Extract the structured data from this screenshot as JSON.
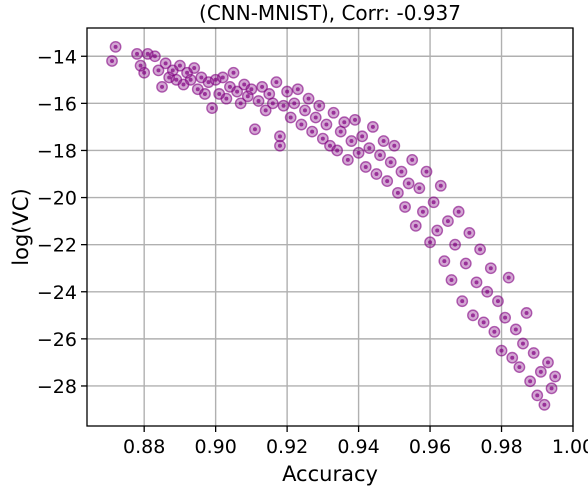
{
  "chart_data": {
    "type": "scatter",
    "title": "(CNN-MNIST), Corr: -0.937",
    "xlabel": "Accuracy",
    "ylabel": "log(VC)",
    "xlim": [
      0.864,
      1.0
    ],
    "ylim": [
      -29.7,
      -12.8
    ],
    "xticks": [
      0.88,
      0.9,
      0.92,
      0.94,
      0.96,
      0.98,
      1.0
    ],
    "xtick_labels": [
      "0.88",
      "0.90",
      "0.92",
      "0.94",
      "0.96",
      "0.98",
      "1.00"
    ],
    "yticks": [
      -14,
      -16,
      -18,
      -20,
      -22,
      -24,
      -26,
      -28
    ],
    "ytick_labels": [
      "−14",
      "−16",
      "−18",
      "−20",
      "−22",
      "−24",
      "−26",
      "−28"
    ],
    "grid": true,
    "marker_color": "#800080",
    "points": [
      [
        0.872,
        -13.6
      ],
      [
        0.871,
        -14.2
      ],
      [
        0.878,
        -13.9
      ],
      [
        0.879,
        -14.4
      ],
      [
        0.881,
        -13.9
      ],
      [
        0.883,
        -14.0
      ],
      [
        0.88,
        -14.7
      ],
      [
        0.884,
        -14.6
      ],
      [
        0.885,
        -15.3
      ],
      [
        0.886,
        -14.3
      ],
      [
        0.887,
        -14.9
      ],
      [
        0.888,
        -14.6
      ],
      [
        0.889,
        -15.0
      ],
      [
        0.89,
        -14.4
      ],
      [
        0.891,
        -15.2
      ],
      [
        0.892,
        -14.7
      ],
      [
        0.893,
        -15.0
      ],
      [
        0.894,
        -14.5
      ],
      [
        0.895,
        -15.4
      ],
      [
        0.896,
        -14.9
      ],
      [
        0.897,
        -15.6
      ],
      [
        0.898,
        -15.1
      ],
      [
        0.899,
        -16.2
      ],
      [
        0.9,
        -15.0
      ],
      [
        0.901,
        -15.6
      ],
      [
        0.902,
        -14.9
      ],
      [
        0.903,
        -15.8
      ],
      [
        0.904,
        -15.3
      ],
      [
        0.905,
        -14.7
      ],
      [
        0.906,
        -15.5
      ],
      [
        0.907,
        -16.0
      ],
      [
        0.908,
        -15.2
      ],
      [
        0.909,
        -15.7
      ],
      [
        0.91,
        -15.4
      ],
      [
        0.911,
        -17.1
      ],
      [
        0.912,
        -15.9
      ],
      [
        0.913,
        -15.3
      ],
      [
        0.914,
        -16.3
      ],
      [
        0.915,
        -15.6
      ],
      [
        0.916,
        -16.0
      ],
      [
        0.917,
        -15.1
      ],
      [
        0.918,
        -17.4
      ],
      [
        0.918,
        -17.8
      ],
      [
        0.919,
        -16.1
      ],
      [
        0.92,
        -15.5
      ],
      [
        0.921,
        -16.6
      ],
      [
        0.922,
        -16.0
      ],
      [
        0.923,
        -15.4
      ],
      [
        0.924,
        -16.9
      ],
      [
        0.925,
        -16.3
      ],
      [
        0.926,
        -15.8
      ],
      [
        0.927,
        -17.2
      ],
      [
        0.928,
        -16.6
      ],
      [
        0.929,
        -16.1
      ],
      [
        0.93,
        -17.5
      ],
      [
        0.931,
        -16.9
      ],
      [
        0.932,
        -17.8
      ],
      [
        0.933,
        -16.4
      ],
      [
        0.934,
        -18.0
      ],
      [
        0.935,
        -17.2
      ],
      [
        0.936,
        -16.8
      ],
      [
        0.937,
        -18.4
      ],
      [
        0.938,
        -17.6
      ],
      [
        0.939,
        -16.7
      ],
      [
        0.94,
        -18.1
      ],
      [
        0.941,
        -17.4
      ],
      [
        0.942,
        -18.7
      ],
      [
        0.943,
        -17.9
      ],
      [
        0.944,
        -17.0
      ],
      [
        0.945,
        -19.0
      ],
      [
        0.946,
        -18.2
      ],
      [
        0.947,
        -17.6
      ],
      [
        0.948,
        -19.3
      ],
      [
        0.949,
        -18.5
      ],
      [
        0.95,
        -17.8
      ],
      [
        0.951,
        -19.8
      ],
      [
        0.952,
        -18.9
      ],
      [
        0.953,
        -20.4
      ],
      [
        0.954,
        -19.4
      ],
      [
        0.955,
        -18.4
      ],
      [
        0.956,
        -21.2
      ],
      [
        0.957,
        -19.6
      ],
      [
        0.958,
        -20.6
      ],
      [
        0.959,
        -18.9
      ],
      [
        0.96,
        -21.9
      ],
      [
        0.961,
        -20.2
      ],
      [
        0.962,
        -21.4
      ],
      [
        0.963,
        -19.5
      ],
      [
        0.964,
        -22.7
      ],
      [
        0.965,
        -21.0
      ],
      [
        0.966,
        -23.5
      ],
      [
        0.967,
        -22.0
      ],
      [
        0.968,
        -20.6
      ],
      [
        0.969,
        -24.4
      ],
      [
        0.97,
        -22.8
      ],
      [
        0.971,
        -21.5
      ],
      [
        0.972,
        -25.0
      ],
      [
        0.973,
        -23.6
      ],
      [
        0.974,
        -22.2
      ],
      [
        0.975,
        -25.3
      ],
      [
        0.976,
        -24.0
      ],
      [
        0.977,
        -23.0
      ],
      [
        0.978,
        -25.7
      ],
      [
        0.979,
        -24.4
      ],
      [
        0.98,
        -26.5
      ],
      [
        0.981,
        -25.1
      ],
      [
        0.982,
        -23.4
      ],
      [
        0.983,
        -26.8
      ],
      [
        0.984,
        -25.6
      ],
      [
        0.985,
        -27.2
      ],
      [
        0.986,
        -26.2
      ],
      [
        0.987,
        -24.9
      ],
      [
        0.988,
        -27.8
      ],
      [
        0.989,
        -26.6
      ],
      [
        0.99,
        -28.4
      ],
      [
        0.991,
        -27.4
      ],
      [
        0.992,
        -28.8
      ],
      [
        0.993,
        -27.0
      ],
      [
        0.994,
        -28.1
      ],
      [
        0.995,
        -27.6
      ]
    ]
  }
}
